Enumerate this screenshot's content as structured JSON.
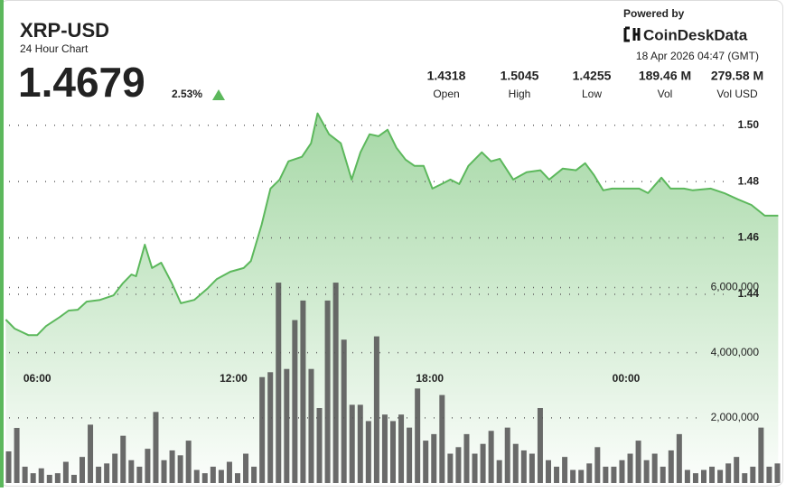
{
  "header": {
    "symbol": "XRP-USD",
    "subtitle": "24 Hour Chart",
    "price": "1.4679",
    "change": "2.53%",
    "powered_by": "Powered by",
    "brand": "CoinDeskData",
    "timestamp": "18 Apr 2026 04:47 (GMT)"
  },
  "stats": [
    {
      "value": "1.4318",
      "label": "Open"
    },
    {
      "value": "1.5045",
      "label": "High"
    },
    {
      "value": "1.4255",
      "label": "Low"
    },
    {
      "value": "189.46 M",
      "label": "Vol"
    },
    {
      "value": "279.58 M",
      "label": "Vol USD"
    }
  ],
  "chart_data": {
    "type": "area",
    "xlim": [
      5,
      28.75
    ],
    "xticks": [
      {
        "value": 6,
        "label": "06:00"
      },
      {
        "value": 12,
        "label": "12:00"
      },
      {
        "value": 18,
        "label": "18:00"
      },
      {
        "value": 24,
        "label": "00:00"
      }
    ],
    "ylim": [
      1.373,
      1.506
    ],
    "yticks": [
      1.44,
      1.46,
      1.48,
      {
        "value": 1.5,
        "label": "1.50"
      }
    ],
    "y2lim": [
      0,
      11500000
    ],
    "y2ticks": [
      {
        "value": 2000000,
        "label": "2,000,000"
      },
      {
        "value": 4000000,
        "label": "4,000,000"
      },
      {
        "value": 6000000,
        "label": "6,000,000"
      }
    ],
    "grid": true,
    "series": [
      {
        "type": "area",
        "color": "#5cb85c",
        "x": [
          5.04,
          5.31,
          5.73,
          6.0,
          6.27,
          6.69,
          6.96,
          7.24,
          7.51,
          7.92,
          8.33,
          8.61,
          8.88,
          9.02,
          9.29,
          9.51,
          9.79,
          10.12,
          10.39,
          10.8,
          11.22,
          11.49,
          11.9,
          12.31,
          12.53,
          12.86,
          13.13,
          13.41,
          13.68,
          14.09,
          14.37,
          14.57,
          14.92,
          15.28,
          15.61,
          15.88,
          16.16,
          16.43,
          16.71,
          16.98,
          17.26,
          17.53,
          17.81,
          18.08,
          18.36,
          18.63,
          18.9,
          19.18,
          19.59,
          19.87,
          20.14,
          20.55,
          20.96,
          21.38,
          21.65,
          22.06,
          22.47,
          22.75,
          23.02,
          23.3,
          23.57,
          23.98,
          24.4,
          24.67,
          25.08,
          25.36,
          25.77,
          26.04,
          26.59,
          27.0,
          27.42,
          27.83,
          28.24,
          28.65
        ],
        "values": [
          1.431,
          1.4278,
          1.4255,
          1.4255,
          1.4287,
          1.4319,
          1.4342,
          1.4345,
          1.4374,
          1.438,
          1.4396,
          1.4438,
          1.447,
          1.4464,
          1.4576,
          1.4493,
          1.4512,
          1.4438,
          1.4368,
          1.438,
          1.4422,
          1.4454,
          1.448,
          1.4493,
          1.4518,
          1.4647,
          1.4775,
          1.4807,
          1.4872,
          1.4888,
          1.4936,
          1.5042,
          1.4968,
          1.4936,
          1.4807,
          1.4904,
          1.4968,
          1.4961,
          1.4984,
          1.492,
          1.4878,
          1.4856,
          1.4856,
          1.4775,
          1.4791,
          1.4807,
          1.4791,
          1.4856,
          1.4904,
          1.4872,
          1.4881,
          1.4807,
          1.4833,
          1.484,
          1.4807,
          1.4846,
          1.484,
          1.4865,
          1.4823,
          1.4769,
          1.4775,
          1.4775,
          1.4775,
          1.4759,
          1.4814,
          1.4775,
          1.4775,
          1.4769,
          1.4775,
          1.4759,
          1.4737,
          1.4717,
          1.4679,
          1.4679
        ]
      },
      {
        "type": "bar",
        "axis": "y2",
        "color": "#5a5a5a",
        "x": [
          5.125,
          5.375,
          5.625,
          5.875,
          6.125,
          6.375,
          6.625,
          6.875,
          7.125,
          7.375,
          7.625,
          7.875,
          8.125,
          8.375,
          8.625,
          8.875,
          9.125,
          9.375,
          9.625,
          9.875,
          10.125,
          10.375,
          10.625,
          10.875,
          11.125,
          11.375,
          11.625,
          11.875,
          12.125,
          12.375,
          12.625,
          12.875,
          13.125,
          13.375,
          13.625,
          13.875,
          14.125,
          14.375,
          14.625,
          14.875,
          15.125,
          15.375,
          15.625,
          15.875,
          16.125,
          16.375,
          16.625,
          16.875,
          17.125,
          17.375,
          17.625,
          17.875,
          18.125,
          18.375,
          18.625,
          18.875,
          19.125,
          19.375,
          19.625,
          19.875,
          20.125,
          20.375,
          20.625,
          20.875,
          21.125,
          21.375,
          21.625,
          21.875,
          22.125,
          22.375,
          22.625,
          22.875,
          23.125,
          23.375,
          23.625,
          23.875,
          24.125,
          24.375,
          24.625,
          24.875,
          25.125,
          25.375,
          25.625,
          25.875,
          26.125,
          26.375,
          26.625,
          26.875,
          27.125,
          27.375,
          27.625,
          27.875,
          28.125,
          28.375,
          28.625
        ],
        "values": [
          970000,
          1690000,
          500000,
          300000,
          450000,
          250000,
          300000,
          650000,
          250000,
          800000,
          1790000,
          500000,
          600000,
          900000,
          1450000,
          700000,
          500000,
          1050000,
          2180000,
          700000,
          1000000,
          850000,
          1300000,
          400000,
          300000,
          500000,
          400000,
          650000,
          300000,
          900000,
          500000,
          3250000,
          3400000,
          6150000,
          3500000,
          5000000,
          5600000,
          3500000,
          2300000,
          5600000,
          6150000,
          4400000,
          2400000,
          2400000,
          1900000,
          4500000,
          2100000,
          1900000,
          2100000,
          1700000,
          2900000,
          1300000,
          1500000,
          2700000,
          900000,
          1100000,
          1500000,
          900000,
          1200000,
          1600000,
          700000,
          1700000,
          1200000,
          1000000,
          900000,
          2300000,
          700000,
          500000,
          800000,
          400000,
          400000,
          600000,
          1100000,
          500000,
          500000,
          700000,
          900000,
          1300000,
          700000,
          900000,
          500000,
          1000000,
          1500000,
          400000,
          300000,
          400000,
          500000,
          400000,
          600000,
          800000,
          300000,
          500000,
          1700000,
          500000,
          600000
        ]
      }
    ]
  }
}
